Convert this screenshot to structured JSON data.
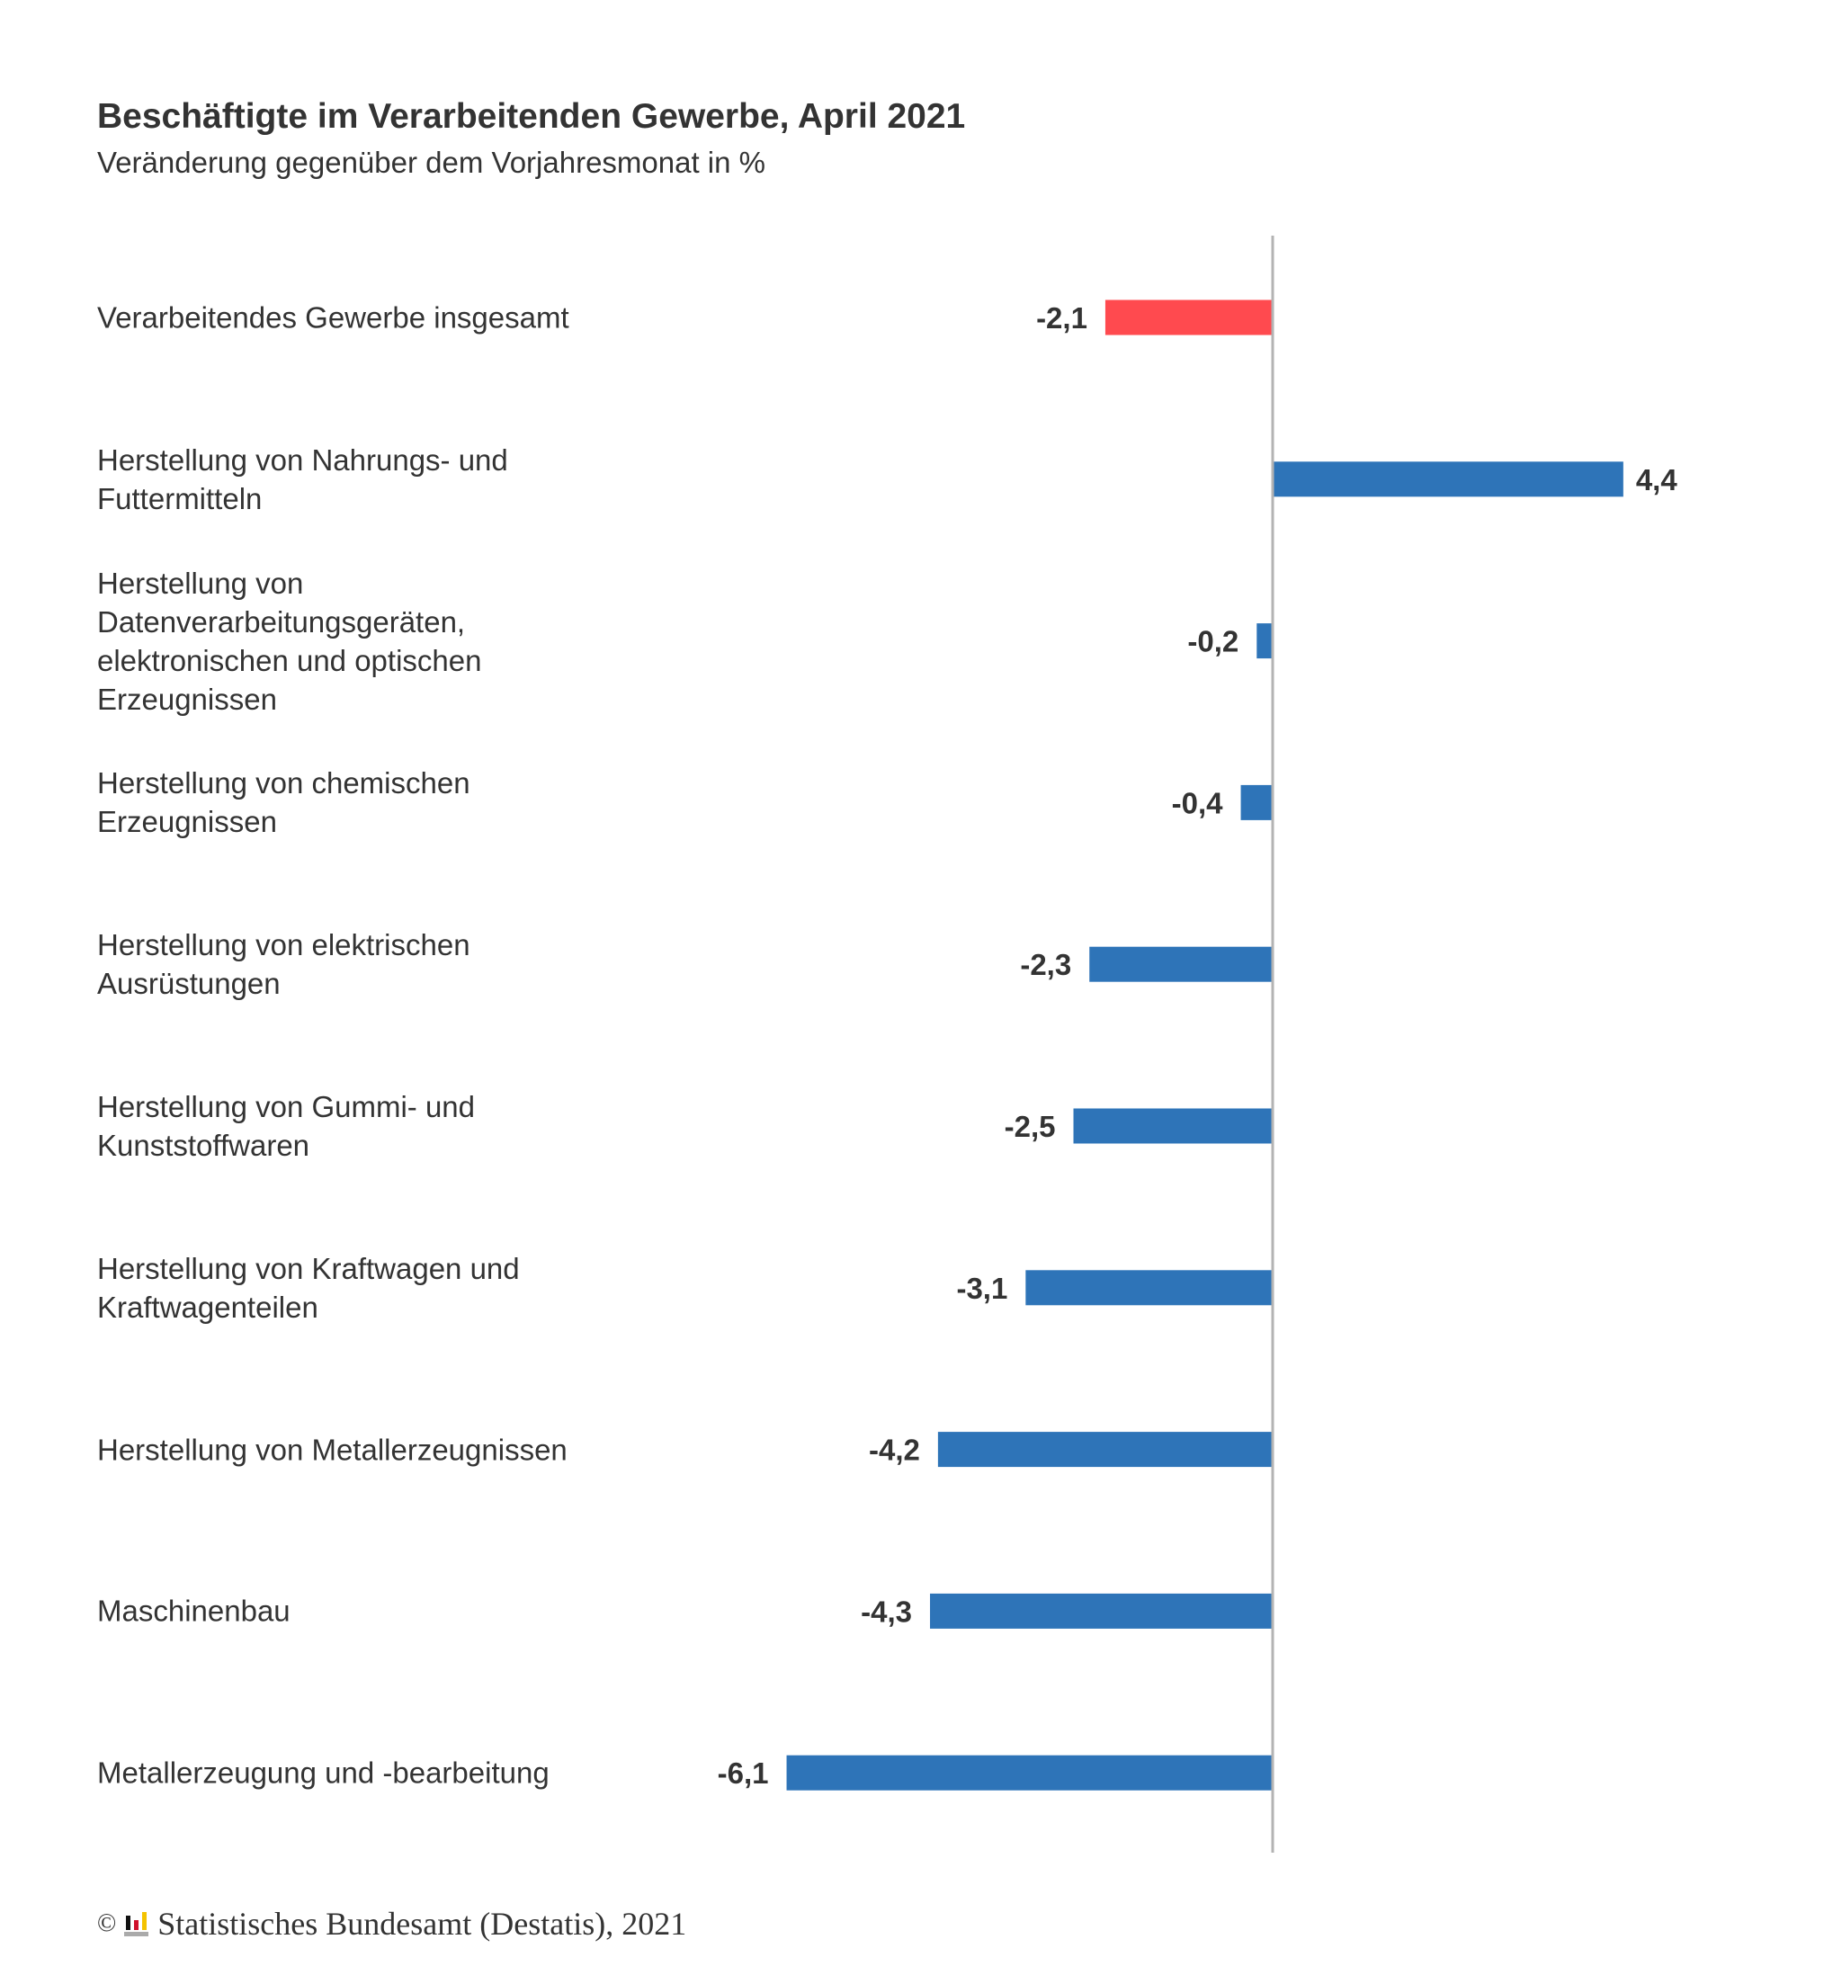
{
  "title": "Beschäftigte im Verarbeitenden Gewerbe, April 2021",
  "subtitle": "Veränderung gegenüber dem Vorjahresmonat in %",
  "chart_data": {
    "type": "bar",
    "orientation": "horizontal",
    "title": "Beschäftigte im Verarbeitenden Gewerbe, April 2021",
    "subtitle": "Veränderung gegenüber dem Vorjahresmonat in %",
    "categories": [
      "Verarbeitendes Gewerbe insgesamt",
      "Herstellung von Nahrungs- und Futtermitteln",
      "Herstellung von Datenverarbeitungsgeräten, elektronischen und optischen Erzeugnissen",
      "Herstellung von chemischen Erzeugnissen",
      "Herstellung von elektrischen Ausrüstungen",
      "Herstellung von Gummi- und Kunststoffwaren",
      "Herstellung von Kraftwagen und Kraftwagenteilen",
      "Herstellung von Metallerzeugnissen",
      "Maschinenbau",
      "Metallerzeugung und -bearbeitung"
    ],
    "values": [
      -2.1,
      4.4,
      -0.2,
      -0.4,
      -2.3,
      -2.5,
      -3.1,
      -4.2,
      -4.3,
      -6.1
    ],
    "data_labels": [
      "-2,1",
      "4,4",
      "-0,2",
      "-0,4",
      "-2,3",
      "-2,5",
      "-3,1",
      "-4,2",
      "-4,3",
      "-6,1"
    ],
    "highlight_index": 0,
    "xlim": [
      -6.1,
      4.4
    ],
    "grid": false,
    "legend": "none",
    "colors": {
      "highlight": "#ff4a4f",
      "default": "#2e74b8",
      "axis": "#b3b3b3"
    }
  },
  "footer": {
    "copyright_symbol": "©",
    "source": "Statistisches Bundesamt (Destatis), 2021"
  }
}
